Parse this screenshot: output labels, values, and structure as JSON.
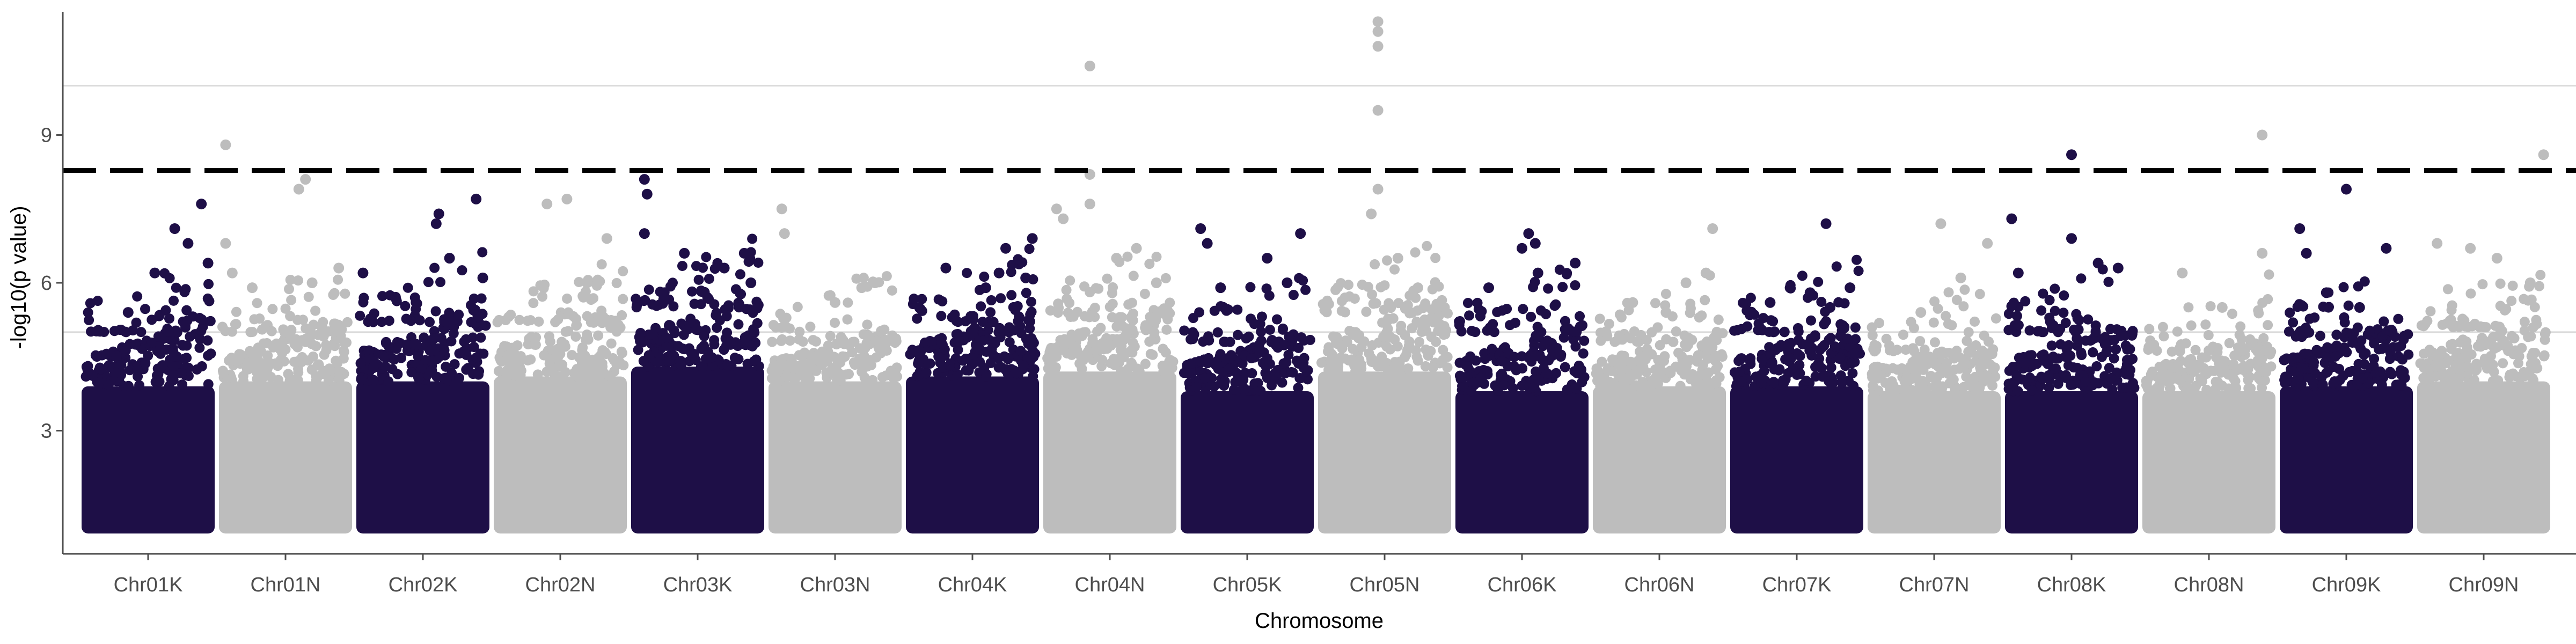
{
  "chart_data": {
    "type": "scatter",
    "title": "",
    "xlabel": "Chromosome",
    "ylabel": "-log10(p value)",
    "ylim": [
      0.5,
      11.5
    ],
    "y_ticks": [
      3,
      6,
      9
    ],
    "hlines": [
      5,
      10
    ],
    "significance_threshold": 8.28,
    "colors": {
      "dark": "#1e0f47",
      "light": "#bdbdbd",
      "threshold": "#000000",
      "gridline": "#d9d9d9"
    },
    "point_floor": 1.0,
    "categories": [
      "Chr01K",
      "Chr01N",
      "Chr02K",
      "Chr02N",
      "Chr03K",
      "Chr03N",
      "Chr04K",
      "Chr04N",
      "Chr05K",
      "Chr05N",
      "Chr06K",
      "Chr06N",
      "Chr07K",
      "Chr07N",
      "Chr08K",
      "Chr08N",
      "Chr09K",
      "Chr09N"
    ],
    "chromosomes": [
      {
        "name": "Chr01K",
        "color": "dark",
        "body_top": 3.9,
        "peak": 5.0,
        "tops": [
          [
            0.35,
            5.4
          ],
          [
            0.55,
            6.2
          ],
          [
            0.7,
            7.1
          ],
          [
            0.8,
            6.8
          ],
          [
            0.9,
            7.6
          ],
          [
            0.95,
            6.4
          ]
        ]
      },
      {
        "name": "Chr01N",
        "color": "light",
        "body_top": 4.0,
        "peak": 5.0,
        "tops": [
          [
            0.05,
            6.8
          ],
          [
            0.1,
            6.2
          ],
          [
            0.25,
            5.9
          ],
          [
            0.6,
            7.9
          ],
          [
            0.65,
            8.1
          ],
          [
            0.7,
            6.0
          ],
          [
            0.9,
            6.3
          ],
          [
            0.05,
            8.8
          ]
        ]
      },
      {
        "name": "Chr02K",
        "color": "dark",
        "body_top": 4.0,
        "peak": 5.2,
        "tops": [
          [
            0.05,
            6.2
          ],
          [
            0.6,
            7.2
          ],
          [
            0.62,
            7.4
          ],
          [
            0.7,
            6.5
          ],
          [
            0.9,
            7.7
          ],
          [
            0.95,
            6.1
          ]
        ]
      },
      {
        "name": "Chr02N",
        "color": "light",
        "body_top": 4.1,
        "peak": 5.2,
        "tops": [
          [
            0.4,
            7.6
          ],
          [
            0.55,
            7.7
          ],
          [
            0.85,
            6.9
          ],
          [
            0.7,
            6.0
          ]
        ]
      },
      {
        "name": "Chr03K",
        "color": "dark",
        "body_top": 4.3,
        "peak": 5.5,
        "tops": [
          [
            0.1,
            8.1
          ],
          [
            0.12,
            7.8
          ],
          [
            0.1,
            7.0
          ],
          [
            0.4,
            6.6
          ],
          [
            0.7,
            6.3
          ],
          [
            0.85,
            6.6
          ],
          [
            0.9,
            6.0
          ]
        ]
      },
      {
        "name": "Chr03N",
        "color": "light",
        "body_top": 4.0,
        "peak": 4.8,
        "tops": [
          [
            0.1,
            7.5
          ],
          [
            0.12,
            7.0
          ],
          [
            0.5,
            5.6
          ],
          [
            0.7,
            5.9
          ],
          [
            0.8,
            6.0
          ]
        ]
      },
      {
        "name": "Chr04K",
        "color": "dark",
        "body_top": 4.1,
        "peak": 5.2,
        "tops": [
          [
            0.3,
            6.3
          ],
          [
            0.6,
            5.9
          ],
          [
            0.7,
            6.2
          ],
          [
            0.75,
            6.7
          ],
          [
            0.95,
            6.9
          ],
          [
            0.9,
            6.1
          ]
        ]
      },
      {
        "name": "Chr04N",
        "color": "light",
        "body_top": 4.2,
        "peak": 5.3,
        "tops": [
          [
            0.1,
            7.5
          ],
          [
            0.15,
            7.3
          ],
          [
            0.35,
            10.4
          ],
          [
            0.35,
            8.2
          ],
          [
            0.35,
            7.6
          ],
          [
            0.55,
            6.5
          ],
          [
            0.7,
            6.7
          ],
          [
            0.85,
            6.0
          ]
        ]
      },
      {
        "name": "Chr05K",
        "color": "dark",
        "body_top": 3.8,
        "peak": 4.8,
        "tops": [
          [
            0.15,
            7.1
          ],
          [
            0.2,
            6.8
          ],
          [
            0.3,
            5.9
          ],
          [
            0.65,
            6.5
          ],
          [
            0.9,
            7.0
          ],
          [
            0.8,
            6.0
          ]
        ]
      },
      {
        "name": "Chr05N",
        "color": "light",
        "body_top": 4.2,
        "peak": 5.4,
        "tops": [
          [
            0.45,
            11.3
          ],
          [
            0.45,
            11.1
          ],
          [
            0.45,
            10.8
          ],
          [
            0.45,
            9.5
          ],
          [
            0.45,
            7.9
          ],
          [
            0.4,
            7.4
          ],
          [
            0.6,
            6.5
          ],
          [
            0.75,
            5.9
          ]
        ]
      },
      {
        "name": "Chr06K",
        "color": "dark",
        "body_top": 3.8,
        "peak": 5.0,
        "tops": [
          [
            0.25,
            5.9
          ],
          [
            0.5,
            6.7
          ],
          [
            0.55,
            7.0
          ],
          [
            0.6,
            6.8
          ],
          [
            0.62,
            6.2
          ],
          [
            0.9,
            6.4
          ]
        ]
      },
      {
        "name": "Chr06N",
        "color": "light",
        "body_top": 3.9,
        "peak": 4.8,
        "tops": [
          [
            0.3,
            5.6
          ],
          [
            0.55,
            5.4
          ],
          [
            0.7,
            6.0
          ],
          [
            0.9,
            7.1
          ],
          [
            0.85,
            6.2
          ]
        ]
      },
      {
        "name": "Chr07K",
        "color": "dark",
        "body_top": 3.9,
        "peak": 5.0,
        "tops": [
          [
            0.3,
            5.6
          ],
          [
            0.45,
            5.9
          ],
          [
            0.6,
            5.8
          ],
          [
            0.75,
            5.5
          ],
          [
            0.72,
            7.2
          ],
          [
            0.9,
            5.9
          ]
        ]
      },
      {
        "name": "Chr07N",
        "color": "light",
        "body_top": 3.8,
        "peak": 4.6,
        "tops": [
          [
            0.4,
            5.4
          ],
          [
            0.55,
            7.2
          ],
          [
            0.7,
            6.1
          ],
          [
            0.9,
            6.8
          ]
        ]
      },
      {
        "name": "Chr08K",
        "color": "dark",
        "body_top": 3.8,
        "peak": 5.0,
        "tops": [
          [
            0.05,
            7.3
          ],
          [
            0.1,
            6.2
          ],
          [
            0.5,
            6.9
          ],
          [
            0.7,
            6.4
          ],
          [
            0.85,
            6.3
          ],
          [
            0.5,
            8.6
          ]
        ]
      },
      {
        "name": "Chr08N",
        "color": "light",
        "body_top": 3.8,
        "peak": 4.6,
        "tops": [
          [
            0.3,
            6.2
          ],
          [
            0.6,
            5.5
          ],
          [
            0.9,
            6.6
          ],
          [
            0.9,
            9.0
          ]
        ]
      },
      {
        "name": "Chr09K",
        "color": "dark",
        "body_top": 3.9,
        "peak": 4.9,
        "tops": [
          [
            0.15,
            7.1
          ],
          [
            0.2,
            6.6
          ],
          [
            0.35,
            5.8
          ],
          [
            0.5,
            7.9
          ],
          [
            0.6,
            5.5
          ],
          [
            0.8,
            6.7
          ]
        ]
      },
      {
        "name": "Chr09N",
        "color": "light",
        "body_top": 4.0,
        "peak": 5.1,
        "tops": [
          [
            0.15,
            6.8
          ],
          [
            0.4,
            6.7
          ],
          [
            0.6,
            6.5
          ],
          [
            0.85,
            6.0
          ],
          [
            0.95,
            8.6
          ]
        ]
      }
    ]
  }
}
